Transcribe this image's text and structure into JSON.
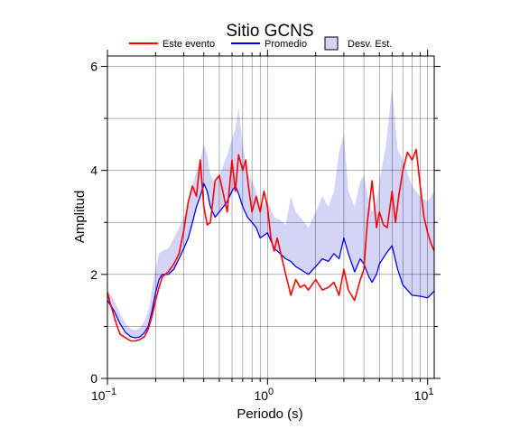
{
  "chart_data": {
    "type": "line",
    "title": "Sitio GCNS",
    "xlabel": "Periodo (s)",
    "ylabel": "Amplitud",
    "xscale": "log",
    "xlim": [
      0.1,
      11
    ],
    "ylim": [
      0,
      6.2
    ],
    "grid": true,
    "legend_position": "top",
    "x_ticks": [
      {
        "value": 0.1,
        "base": "10",
        "exp": "−1"
      },
      {
        "value": 1,
        "base": "10",
        "exp": "0"
      },
      {
        "value": 10,
        "base": "10",
        "exp": "1"
      }
    ],
    "y_ticks": [
      {
        "value": 0,
        "label": "0"
      },
      {
        "value": 2,
        "label": "2"
      },
      {
        "value": 4,
        "label": "4"
      },
      {
        "value": 6,
        "label": "6"
      }
    ],
    "colors": {
      "event": "#ff0000",
      "mean": "#0000ff",
      "band_fill": "#d4d4f7",
      "band_edge": "#000000"
    },
    "legend": {
      "event": "Este evento",
      "mean": "Promedio",
      "band": "Desv. Est."
    },
    "series": [
      {
        "key": "event",
        "x": [
          0.1,
          0.104,
          0.11,
          0.115,
          0.12,
          0.13,
          0.14,
          0.15,
          0.16,
          0.17,
          0.18,
          0.19,
          0.2,
          0.21,
          0.22,
          0.24,
          0.26,
          0.28,
          0.3,
          0.32,
          0.34,
          0.36,
          0.38,
          0.4,
          0.42,
          0.44,
          0.47,
          0.5,
          0.53,
          0.56,
          0.6,
          0.63,
          0.66,
          0.7,
          0.73,
          0.76,
          0.8,
          0.85,
          0.9,
          0.95,
          1.0,
          1.05,
          1.1,
          1.15,
          1.2,
          1.3,
          1.4,
          1.5,
          1.6,
          1.7,
          1.8,
          2.0,
          2.2,
          2.4,
          2.6,
          2.8,
          3.0,
          3.2,
          3.5,
          3.8,
          4.0,
          4.2,
          4.5,
          4.8,
          5.0,
          5.3,
          5.6,
          6.0,
          6.3,
          6.6,
          7.0,
          7.5,
          8.0,
          8.5,
          9.0,
          9.5,
          10.0,
          10.5,
          11.0
        ],
        "y": [
          1.65,
          1.45,
          1.2,
          1.0,
          0.85,
          0.78,
          0.72,
          0.72,
          0.75,
          0.8,
          0.95,
          1.2,
          1.5,
          1.75,
          1.95,
          2.05,
          2.2,
          2.4,
          2.85,
          3.4,
          3.7,
          3.5,
          4.2,
          3.3,
          2.95,
          3.0,
          3.8,
          3.9,
          3.55,
          3.2,
          4.2,
          3.6,
          4.3,
          4.0,
          4.2,
          3.7,
          3.2,
          3.5,
          3.2,
          3.6,
          3.3,
          2.7,
          2.45,
          2.7,
          2.45,
          2.0,
          1.6,
          1.9,
          1.75,
          1.8,
          1.7,
          1.9,
          1.7,
          1.75,
          1.85,
          1.6,
          2.1,
          1.7,
          1.5,
          1.9,
          2.1,
          3.0,
          3.8,
          2.9,
          3.2,
          2.95,
          2.9,
          3.6,
          3.0,
          3.5,
          4.0,
          4.35,
          4.2,
          4.4,
          3.7,
          3.1,
          2.8,
          2.6,
          2.45
        ]
      },
      {
        "key": "mean",
        "x": [
          0.1,
          0.11,
          0.12,
          0.13,
          0.14,
          0.15,
          0.16,
          0.17,
          0.18,
          0.19,
          0.2,
          0.21,
          0.22,
          0.24,
          0.26,
          0.28,
          0.3,
          0.32,
          0.34,
          0.36,
          0.38,
          0.4,
          0.42,
          0.44,
          0.47,
          0.5,
          0.53,
          0.56,
          0.6,
          0.63,
          0.66,
          0.7,
          0.75,
          0.8,
          0.85,
          0.9,
          1.0,
          1.1,
          1.2,
          1.3,
          1.4,
          1.5,
          1.6,
          1.8,
          2.0,
          2.2,
          2.4,
          2.6,
          2.8,
          3.0,
          3.2,
          3.5,
          3.8,
          4.0,
          4.3,
          4.5,
          4.8,
          5.0,
          5.5,
          6.0,
          6.5,
          7.0,
          8.0,
          9.0,
          10.0,
          11.0
        ],
        "y": [
          1.5,
          1.3,
          1.05,
          0.88,
          0.8,
          0.78,
          0.8,
          0.88,
          1.0,
          1.3,
          1.65,
          1.9,
          2.0,
          2.0,
          2.1,
          2.3,
          2.5,
          2.7,
          3.0,
          3.3,
          3.5,
          3.75,
          3.6,
          3.3,
          3.1,
          3.2,
          3.3,
          3.4,
          3.6,
          3.7,
          3.55,
          3.3,
          3.1,
          3.0,
          2.9,
          2.7,
          2.8,
          2.5,
          2.4,
          2.3,
          2.25,
          2.15,
          2.1,
          2.0,
          2.15,
          2.3,
          2.25,
          2.4,
          2.3,
          2.7,
          2.4,
          2.05,
          2.3,
          2.2,
          1.95,
          1.85,
          2.0,
          2.2,
          2.4,
          2.55,
          2.1,
          1.8,
          1.6,
          1.58,
          1.55,
          1.68
        ]
      }
    ],
    "band": {
      "x": [
        0.1,
        0.11,
        0.12,
        0.13,
        0.14,
        0.15,
        0.16,
        0.17,
        0.18,
        0.19,
        0.2,
        0.21,
        0.22,
        0.24,
        0.26,
        0.28,
        0.3,
        0.32,
        0.34,
        0.36,
        0.38,
        0.4,
        0.42,
        0.44,
        0.47,
        0.5,
        0.53,
        0.56,
        0.6,
        0.63,
        0.66,
        0.7,
        0.75,
        0.8,
        0.85,
        0.9,
        1.0,
        1.1,
        1.2,
        1.3,
        1.4,
        1.5,
        1.6,
        1.8,
        2.0,
        2.2,
        2.4,
        2.6,
        2.8,
        3.0,
        3.2,
        3.5,
        3.8,
        4.0,
        4.3,
        4.5,
        4.8,
        5.0,
        5.5,
        6.0,
        6.5,
        7.0,
        8.0,
        9.0,
        10.0,
        11.0
      ],
      "upper": [
        1.7,
        1.5,
        1.25,
        1.05,
        0.95,
        0.93,
        0.98,
        1.1,
        1.3,
        1.7,
        2.1,
        2.4,
        2.45,
        2.5,
        2.7,
        2.9,
        3.1,
        3.35,
        3.7,
        4.0,
        4.2,
        4.5,
        4.3,
        3.9,
        3.75,
        3.9,
        4.1,
        4.3,
        4.6,
        4.8,
        5.2,
        4.5,
        3.9,
        3.8,
        3.6,
        3.3,
        3.4,
        3.1,
        3.05,
        2.95,
        3.5,
        3.2,
        3.1,
        2.9,
        3.2,
        3.5,
        3.3,
        3.6,
        4.35,
        4.7,
        3.6,
        3.3,
        3.8,
        3.9,
        3.4,
        3.2,
        3.4,
        3.8,
        4.5,
        5.6,
        4.4,
        4.2,
        3.7,
        3.5,
        3.4,
        3.6
      ]
    }
  }
}
